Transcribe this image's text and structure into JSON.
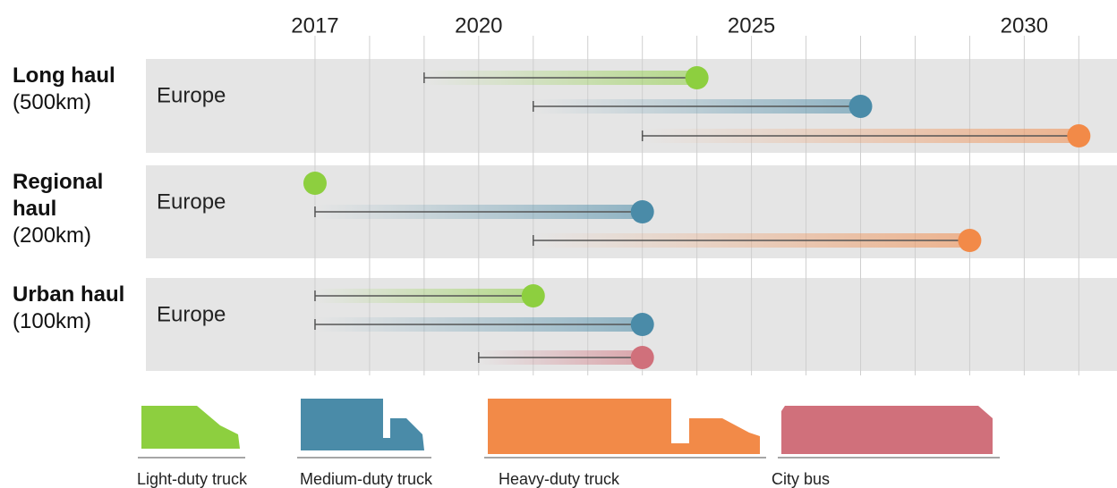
{
  "chart_data": {
    "type": "range",
    "xlim": [
      2013.9,
      2031.7
    ],
    "xticks": [
      2017,
      2020,
      2025,
      2030
    ],
    "minor_xticks": [
      2018,
      2019,
      2021,
      2022,
      2023,
      2024,
      2026,
      2027,
      2028,
      2029,
      2031
    ],
    "grid": true,
    "series": [
      {
        "name": "Light-duty truck",
        "color": "#8dcf3f"
      },
      {
        "name": "Medium-duty truck",
        "color": "#4a8ba8"
      },
      {
        "name": "Heavy-duty truck",
        "color": "#f28a48"
      },
      {
        "name": "City bus",
        "color": "#d0707b"
      }
    ],
    "groups": [
      {
        "name": "Long haul",
        "distance": "(500km)",
        "region": "Europe",
        "items": [
          {
            "series": 0,
            "start": 2019,
            "end": 2024
          },
          {
            "series": 1,
            "start": 2021,
            "end": 2027
          },
          {
            "series": 2,
            "start": 2023,
            "end": 2031
          }
        ]
      },
      {
        "name": "Regional haul",
        "distance": "(200km)",
        "region": "Europe",
        "items": [
          {
            "series": 0,
            "start": 2017,
            "end": 2017
          },
          {
            "series": 1,
            "start": 2017,
            "end": 2023
          },
          {
            "series": 2,
            "start": 2021,
            "end": 2029
          }
        ]
      },
      {
        "name": "Urban haul",
        "distance": "(100km)",
        "region": "Europe",
        "items": [
          {
            "series": 0,
            "start": 2017,
            "end": 2021
          },
          {
            "series": 1,
            "start": 2017,
            "end": 2023
          },
          {
            "series": 3,
            "start": 2020,
            "end": 2023
          }
        ]
      }
    ]
  }
}
